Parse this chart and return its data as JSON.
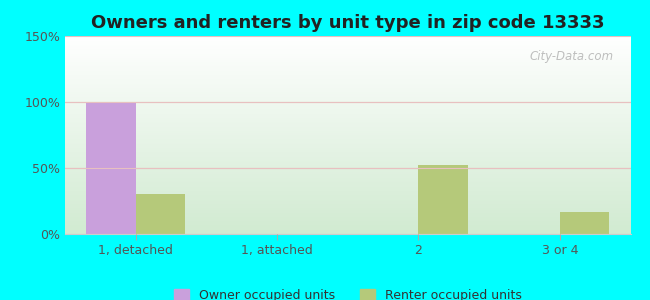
{
  "title": "Owners and renters by unit type in zip code 13333",
  "categories": [
    "1, detached",
    "1, attached",
    "2",
    "3 or 4"
  ],
  "owner_values": [
    100,
    0,
    0,
    0
  ],
  "renter_values": [
    30,
    0,
    52,
    17
  ],
  "owner_color": "#c9a0dc",
  "renter_color": "#b5c97a",
  "ylim": [
    0,
    150
  ],
  "yticks": [
    0,
    50,
    100,
    150
  ],
  "ytick_labels": [
    "0%",
    "50%",
    "100%",
    "150%"
  ],
  "background_outer": "#00ffff",
  "bar_width": 0.35,
  "legend_owner": "Owner occupied units",
  "legend_renter": "Renter occupied units",
  "watermark": "City-Data.com",
  "title_fontsize": 13,
  "tick_fontsize": 9
}
